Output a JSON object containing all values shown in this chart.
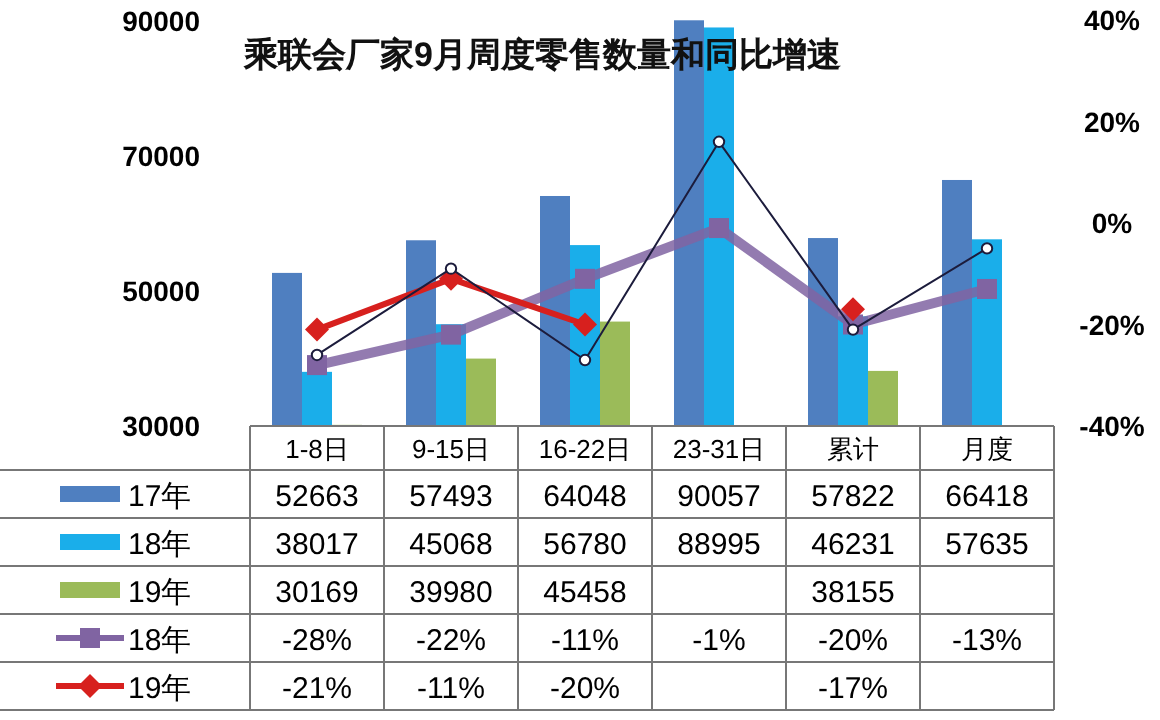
{
  "chart_data": {
    "type": "bar",
    "title": "乘联会厂家9月周度零售数量和同比增速",
    "categories": [
      "1-8日",
      "9-15日",
      "16-22日",
      "23-31日",
      "累计",
      "月度"
    ],
    "series": [
      {
        "name": "17年",
        "color": "#4f7fc0",
        "values": [
          52663,
          57493,
          64048,
          90057,
          57822,
          66418
        ],
        "value_labels": [
          "52663",
          "57493",
          "64048",
          "90057",
          "57822",
          "66418"
        ]
      },
      {
        "name": "18年",
        "color": "#1aaeea",
        "values": [
          38017,
          45068,
          56780,
          88995,
          46231,
          57635
        ],
        "value_labels": [
          "38017",
          "45068",
          "56780",
          "88995",
          "46231",
          "57635"
        ]
      },
      {
        "name": "19年",
        "color": "#9bbb59",
        "values": [
          30169,
          39980,
          45458,
          null,
          38155,
          null
        ],
        "value_labels": [
          "30169",
          "39980",
          "45458",
          null,
          "38155",
          null
        ]
      },
      {
        "name": "18年",
        "type": "line",
        "axis": "y2",
        "marker": "square",
        "color": "#8064a2",
        "values": [
          -28,
          -22,
          -11,
          -1,
          -20,
          -13
        ],
        "value_labels": [
          "-28%",
          "-22%",
          "-11%",
          "-1%",
          "-20%",
          "-13%"
        ]
      },
      {
        "name": "19年",
        "type": "line",
        "axis": "y2",
        "marker": "diamond",
        "color": "#d7201e",
        "values": [
          -21,
          -11,
          -20,
          null,
          -17,
          null
        ],
        "value_labels": [
          "-21%",
          "-11%",
          "-20%",
          null,
          "-17%",
          null
        ]
      },
      {
        "type": "line",
        "axis": "y2",
        "marker": "circle",
        "color": "#1c1c3c",
        "values": [
          -26,
          -9,
          -27,
          16,
          -21,
          -5
        ]
      }
    ],
    "ylim": [
      30000,
      90100
    ],
    "yticks": [
      30000,
      50000,
      70000,
      90000
    ],
    "y2lim": [
      -40,
      40
    ],
    "y2ticks": [
      {
        "value": -40,
        "label": "-40%"
      },
      {
        "value": -20,
        "label": "-20%"
      },
      {
        "value": 0,
        "label": "0%"
      },
      {
        "value": 20,
        "label": "20%"
      },
      {
        "value": 40,
        "label": "40%"
      }
    ],
    "legend": "bottom"
  }
}
